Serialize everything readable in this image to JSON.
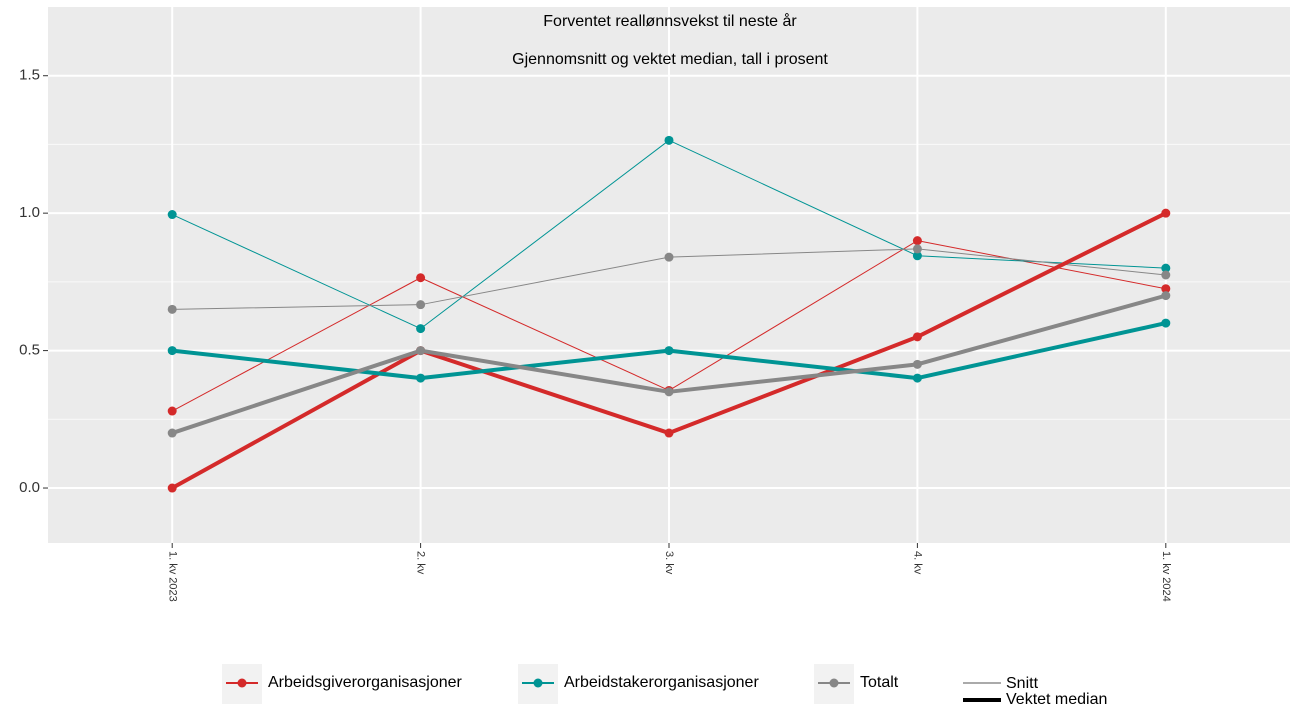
{
  "chart_data": {
    "type": "line",
    "title": "Forventet reallønnsvekst til neste år",
    "subtitle": "Gjennomsnitt og vektet median, tall i prosent",
    "categories": [
      "1. kv 2023",
      "2. kv",
      "3. kv",
      "4. kv",
      "1. kv 2024"
    ],
    "series": [
      {
        "name": "Arbeidsgiverorganisasjoner",
        "color": "#d42a2a",
        "mean": [
          0.28,
          0.765,
          0.355,
          0.9,
          0.725
        ],
        "median": [
          0,
          0.5,
          0.2,
          0.55,
          1.0
        ]
      },
      {
        "name": "Arbeidstakerorganisasjoner",
        "color": "#009494",
        "mean": [
          0.995,
          0.58,
          1.265,
          0.845,
          0.8
        ],
        "median": [
          0.5,
          0.4,
          0.5,
          0.4,
          0.6
        ]
      },
      {
        "name": "Totalt",
        "color": "#878787",
        "mean": [
          0.65,
          0.667,
          0.84,
          0.87,
          0.775
        ],
        "median": [
          0.2,
          0.5,
          0.35,
          0.45,
          0.7
        ]
      }
    ],
    "line_legend": {
      "mean": "Snitt",
      "median": "Vektet median"
    },
    "ylim": [
      -0.2,
      1.75
    ],
    "yticks": [
      {
        "value": 0,
        "label": "0.0"
      },
      {
        "value": 0.5,
        "label": "0.5"
      },
      {
        "value": 1,
        "label": "1.0"
      },
      {
        "value": 1.5,
        "label": "1.5"
      }
    ],
    "minor_yticks": [
      0.25,
      0.75,
      1.25
    ],
    "grid": true
  }
}
